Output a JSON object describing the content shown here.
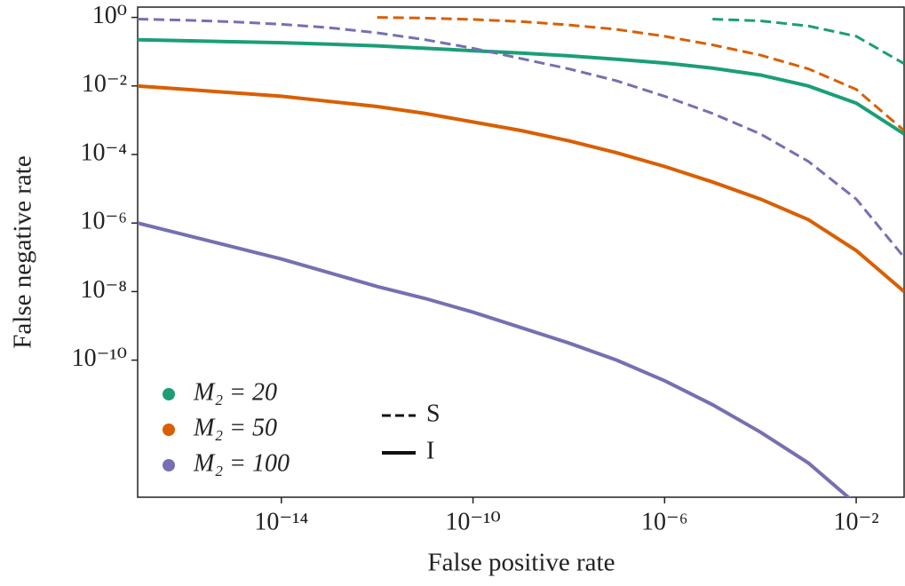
{
  "chart_data": {
    "type": "line",
    "x_label": "False positive rate",
    "y_label": "False negative rate",
    "log_x": true,
    "log_y": true,
    "xlim": [
      1e-17,
      0.1
    ],
    "ylim": [
      1e-14,
      2
    ],
    "xticks": [
      {
        "value": 1e-14,
        "label": "10⁻¹⁴"
      },
      {
        "value": 1e-10,
        "label": "10⁻¹⁰"
      },
      {
        "value": 1e-06,
        "label": "10⁻⁶"
      },
      {
        "value": 0.01,
        "label": "10⁻²"
      }
    ],
    "yticks": [
      {
        "value": 1,
        "label": "10⁰"
      },
      {
        "value": 0.01,
        "label": "10⁻²"
      },
      {
        "value": 0.0001,
        "label": "10⁻⁴"
      },
      {
        "value": 1e-06,
        "label": "10⁻⁶"
      },
      {
        "value": 1e-08,
        "label": "10⁻⁸"
      },
      {
        "value": 1e-10,
        "label": "10⁻¹⁰"
      }
    ],
    "x": [
      1e-17,
      1e-16,
      1e-15,
      1e-14,
      1e-13,
      1e-12,
      1e-11,
      1e-10,
      1e-09,
      1e-08,
      1e-07,
      1e-06,
      1e-05,
      0.0001,
      0.001,
      0.01,
      0.1
    ],
    "line_styles": [
      {
        "name": "S",
        "dashed": true
      },
      {
        "name": "I",
        "dashed": false
      }
    ],
    "series": [
      {
        "name": "M₂ = 20",
        "color": "#1b9e77",
        "lines": [
          {
            "values": [
              null,
              null,
              null,
              null,
              null,
              null,
              null,
              null,
              null,
              null,
              null,
              null,
              0.891,
              0.794,
              0.562,
              0.282,
              0.0447
            ]
          },
          {
            "values": [
              0.224,
              0.209,
              0.195,
              0.182,
              0.166,
              0.148,
              0.126,
              0.107,
              0.0912,
              0.0759,
              0.0603,
              0.0468,
              0.0331,
              0.0209,
              0.01,
              0.00316,
              0.000398
            ]
          }
        ]
      },
      {
        "name": "M₂ = 50",
        "color": "#d95f02",
        "lines": [
          {
            "values": [
              null,
              null,
              null,
              null,
              null,
              1.0,
              0.955,
              0.871,
              0.759,
              0.603,
              0.447,
              0.282,
              0.158,
              0.0794,
              0.0316,
              0.00794,
              0.000501
            ]
          },
          {
            "values": [
              0.01,
              0.00794,
              0.00631,
              0.00501,
              0.00355,
              0.00251,
              0.00158,
              0.000891,
              0.000501,
              0.000251,
              0.000112,
              4.47e-05,
              1.58e-05,
              5.01e-06,
              1.26e-06,
              1.58e-07,
              1e-08
            ]
          }
        ]
      },
      {
        "name": "M₂ = 100",
        "color": "#7570b3",
        "lines": [
          {
            "values": [
              0.891,
              0.832,
              0.741,
              0.631,
              0.501,
              0.355,
              0.224,
              0.126,
              0.0631,
              0.0316,
              0.0141,
              0.00501,
              0.00158,
              0.000398,
              6.31e-05,
              5.01e-06,
              1e-07
            ]
          },
          {
            "values": [
              1e-06,
              4.47e-07,
              2e-07,
              8.91e-08,
              3.55e-08,
              1.41e-08,
              6.31e-09,
              2.51e-09,
              8.91e-10,
              3.16e-10,
              1e-10,
              2.51e-11,
              5.01e-12,
              7.94e-13,
              1e-13,
              6.31e-15,
              null
            ]
          }
        ]
      }
    ]
  }
}
